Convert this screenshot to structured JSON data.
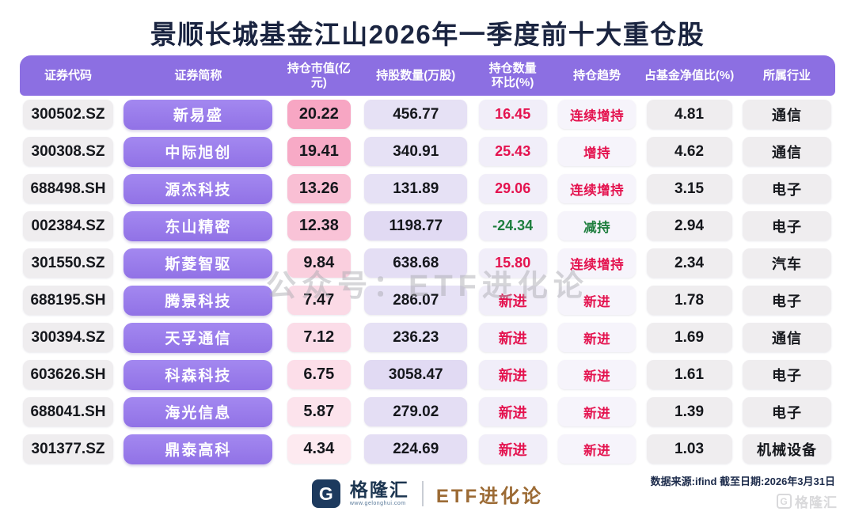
{
  "title": "景顺长城基金江山2026年一季度前十大重仓股",
  "watermark": "公众号：ETF进化论",
  "colors": {
    "header_purple": "#8C6FE2",
    "name_pill_purple": "#9878EA",
    "gray_cell": "#EFEDEF",
    "shares_lavender": "#E6E1F5",
    "shares_lavender_deep": "#E1DAF3",
    "qoq_bg": "#F1EEF9",
    "trend_bg": "#F6F4FB",
    "red": "#E4134F",
    "green": "#1E7E3E",
    "title_navy": "#1A2440",
    "brand_gold": "#9C6B35"
  },
  "table": {
    "headers": [
      "证券代码",
      "证券简称",
      "持仓市值(亿元)",
      "持股数量(万股)",
      "持仓数量\n环比(%)",
      "持仓趋势",
      "占基金净值比(%)",
      "所属行业"
    ],
    "rows": [
      {
        "code": "300502.SZ",
        "name": "新易盛",
        "mv": "20.22",
        "mv_bg": "#F7A6C3",
        "shares": "456.77",
        "shares_bg": "#E6E1F5",
        "qoq": "16.45",
        "qoq_color": "red",
        "trend": "连续增持",
        "trend_color": "red",
        "nav": "4.81",
        "industry": "通信"
      },
      {
        "code": "300308.SZ",
        "name": "中际旭创",
        "mv": "19.41",
        "mv_bg": "#F7AAC6",
        "shares": "340.91",
        "shares_bg": "#E6E1F5",
        "qoq": "25.43",
        "qoq_color": "red",
        "trend": "增持",
        "trend_color": "red",
        "nav": "4.62",
        "industry": "通信"
      },
      {
        "code": "688498.SH",
        "name": "源杰科技",
        "mv": "13.26",
        "mv_bg": "#F9BFD4",
        "shares": "131.89",
        "shares_bg": "#E6E1F5",
        "qoq": "29.06",
        "qoq_color": "red",
        "trend": "连续增持",
        "trend_color": "red",
        "nav": "3.15",
        "industry": "电子"
      },
      {
        "code": "002384.SZ",
        "name": "东山精密",
        "mv": "12.38",
        "mv_bg": "#F9C3D7",
        "shares": "1198.77",
        "shares_bg": "#E1DAF3",
        "qoq": "-24.34",
        "qoq_color": "green",
        "trend": "减持",
        "trend_color": "green",
        "nav": "2.94",
        "industry": "电子"
      },
      {
        "code": "301550.SZ",
        "name": "斯菱智驱",
        "mv": "9.84",
        "mv_bg": "#FACFDE",
        "shares": "638.68",
        "shares_bg": "#E4DEF4",
        "qoq": "15.80",
        "qoq_color": "red",
        "trend": "连续增持",
        "trend_color": "red",
        "nav": "2.34",
        "industry": "汽车"
      },
      {
        "code": "688195.SH",
        "name": "腾景科技",
        "mv": "7.47",
        "mv_bg": "#FBDAE6",
        "shares": "286.07",
        "shares_bg": "#E6E1F5",
        "qoq": "新进",
        "qoq_color": "red",
        "trend": "新进",
        "trend_color": "red",
        "nav": "1.78",
        "industry": "电子"
      },
      {
        "code": "300394.SZ",
        "name": "天孚通信",
        "mv": "7.12",
        "mv_bg": "#FBDCE8",
        "shares": "236.23",
        "shares_bg": "#E6E1F5",
        "qoq": "新进",
        "qoq_color": "red",
        "trend": "新进",
        "trend_color": "red",
        "nav": "1.69",
        "industry": "通信"
      },
      {
        "code": "603626.SH",
        "name": "科森科技",
        "mv": "6.75",
        "mv_bg": "#FCDEE9",
        "shares": "3058.47",
        "shares_bg": "#E1DAF3",
        "qoq": "新进",
        "qoq_color": "red",
        "trend": "新进",
        "trend_color": "red",
        "nav": "1.61",
        "industry": "电子"
      },
      {
        "code": "688041.SH",
        "name": "海光信息",
        "mv": "5.87",
        "mv_bg": "#FCE3EC",
        "shares": "279.02",
        "shares_bg": "#E4DEF4",
        "qoq": "新进",
        "qoq_color": "red",
        "trend": "新进",
        "trend_color": "red",
        "nav": "1.39",
        "industry": "电子"
      },
      {
        "code": "301377.SZ",
        "name": "鼎泰高科",
        "mv": "4.34",
        "mv_bg": "#FDEAF0",
        "shares": "224.69",
        "shares_bg": "#E4DEF4",
        "qoq": "新进",
        "qoq_color": "red",
        "trend": "新进",
        "trend_color": "red",
        "nav": "1.03",
        "industry": "机械设备"
      }
    ]
  },
  "footer": {
    "logo_letter": "G",
    "logo_name": "格隆汇",
    "logo_url": "www.gelonghui.com",
    "brand": "ETF进化论",
    "source": "数据来源:ifind 截至日期:2026年3月31日",
    "corner_letter": "G",
    "corner_name": "格隆汇"
  }
}
